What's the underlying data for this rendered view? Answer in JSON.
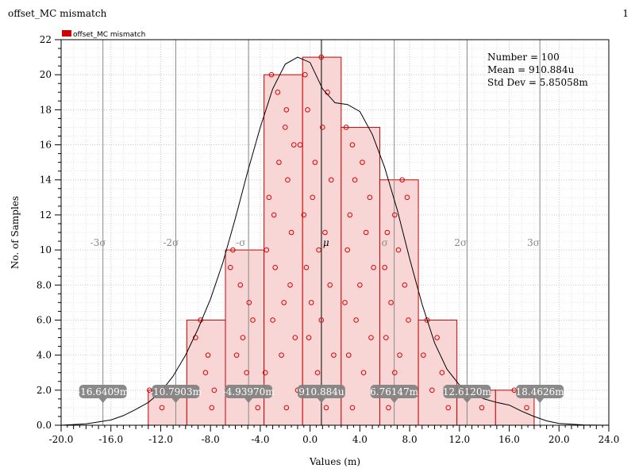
{
  "window": {
    "title": "offset_MC mismatch",
    "index": "1"
  },
  "chart_data": {
    "type": "bar",
    "title": "offset_MC mismatch",
    "xlabel": "Values (m)",
    "ylabel": "No. of Samples",
    "xlim": [
      -20,
      24
    ],
    "ylim": [
      0,
      22
    ],
    "xticks": [
      "-20.0",
      "-16.0",
      "-12.0",
      "-8.0",
      "-4.0",
      "0.0",
      "4.0",
      "8.0",
      "12.0",
      "16.0",
      "20.0",
      "24.0"
    ],
    "yticks": [
      "0.0",
      "2.0",
      "4.0",
      "6.0",
      "8.0",
      "10",
      "12",
      "14",
      "16",
      "18",
      "20",
      "22"
    ],
    "grid": true,
    "legend": {
      "position": "top-left",
      "entries": [
        {
          "name": "offset_MC mismatch",
          "color": "#cc0000"
        }
      ]
    },
    "bins": [
      {
        "from": -13.0,
        "to": -9.9,
        "count": 2
      },
      {
        "from": -9.9,
        "to": -6.8,
        "count": 6
      },
      {
        "from": -6.8,
        "to": -3.7,
        "count": 10
      },
      {
        "from": -3.7,
        "to": -0.6,
        "count": 20
      },
      {
        "from": -0.6,
        "to": 2.5,
        "count": 21
      },
      {
        "from": 2.5,
        "to": 5.6,
        "count": 17
      },
      {
        "from": 5.6,
        "to": 8.7,
        "count": 14
      },
      {
        "from": 8.7,
        "to": 11.8,
        "count": 6
      },
      {
        "from": 11.8,
        "to": 14.9,
        "count": 2
      },
      {
        "from": 14.9,
        "to": 18.0,
        "count": 2
      }
    ],
    "density_curve": {
      "x": [
        -20,
        -18,
        -16,
        -15,
        -14,
        -13,
        -12,
        -11,
        -10,
        -9,
        -8,
        -7,
        -6,
        -5,
        -4,
        -3,
        -2,
        -1,
        0,
        1,
        2,
        3,
        4,
        5,
        6,
        7,
        8,
        9,
        10,
        11,
        12,
        13,
        14,
        15,
        16,
        17,
        18,
        19,
        20,
        22,
        24
      ],
      "y": [
        0.0,
        0.08,
        0.3,
        0.55,
        0.9,
        1.3,
        1.9,
        2.8,
        4.0,
        5.5,
        7.2,
        9.3,
        11.8,
        14.5,
        17.0,
        19.2,
        20.6,
        21.0,
        20.7,
        19.2,
        18.4,
        18.3,
        17.9,
        16.6,
        14.7,
        12.3,
        9.5,
        6.9,
        4.7,
        3.2,
        2.3,
        1.8,
        1.5,
        1.3,
        1.15,
        0.8,
        0.5,
        0.25,
        0.1,
        0.02,
        0.0
      ]
    },
    "samples": [
      {
        "x": -12.9,
        "y": 2.0
      },
      {
        "x": -11.9,
        "y": 1.0
      },
      {
        "x": -9.2,
        "y": 5.0
      },
      {
        "x": -8.8,
        "y": 6.0
      },
      {
        "x": -8.2,
        "y": 4.0
      },
      {
        "x": -8.4,
        "y": 3.0
      },
      {
        "x": -7.7,
        "y": 2.0
      },
      {
        "x": -7.9,
        "y": 1.0
      },
      {
        "x": -6.2,
        "y": 10.0
      },
      {
        "x": -6.4,
        "y": 9.0
      },
      {
        "x": -5.6,
        "y": 8.0
      },
      {
        "x": -4.9,
        "y": 7.0
      },
      {
        "x": -4.6,
        "y": 6.0
      },
      {
        "x": -5.4,
        "y": 5.0
      },
      {
        "x": -5.9,
        "y": 4.0
      },
      {
        "x": -5.1,
        "y": 3.0
      },
      {
        "x": -6.6,
        "y": 2.0
      },
      {
        "x": -4.2,
        "y": 1.0
      },
      {
        "x": -3.1,
        "y": 20.0
      },
      {
        "x": -2.6,
        "y": 19.0
      },
      {
        "x": -1.9,
        "y": 18.0
      },
      {
        "x": -2.0,
        "y": 17.0
      },
      {
        "x": -1.3,
        "y": 16.0
      },
      {
        "x": -2.5,
        "y": 15.0
      },
      {
        "x": -1.8,
        "y": 14.0
      },
      {
        "x": -3.3,
        "y": 13.0
      },
      {
        "x": -2.9,
        "y": 12.0
      },
      {
        "x": -1.5,
        "y": 11.0
      },
      {
        "x": -3.5,
        "y": 10.0
      },
      {
        "x": -2.8,
        "y": 9.0
      },
      {
        "x": -1.6,
        "y": 8.0
      },
      {
        "x": -2.1,
        "y": 7.0
      },
      {
        "x": -3.0,
        "y": 6.0
      },
      {
        "x": -1.2,
        "y": 5.0
      },
      {
        "x": -2.3,
        "y": 4.0
      },
      {
        "x": -3.6,
        "y": 3.0
      },
      {
        "x": -1.0,
        "y": 2.0
      },
      {
        "x": -1.9,
        "y": 1.0
      },
      {
        "x": 0.9,
        "y": 21.0
      },
      {
        "x": -0.4,
        "y": 20.0
      },
      {
        "x": 1.4,
        "y": 19.0
      },
      {
        "x": -0.2,
        "y": 18.0
      },
      {
        "x": 1.0,
        "y": 17.0
      },
      {
        "x": -0.8,
        "y": 16.0
      },
      {
        "x": 0.4,
        "y": 15.0
      },
      {
        "x": 1.7,
        "y": 14.0
      },
      {
        "x": 0.2,
        "y": 13.0
      },
      {
        "x": -0.5,
        "y": 12.0
      },
      {
        "x": 1.2,
        "y": 11.0
      },
      {
        "x": 0.7,
        "y": 10.0
      },
      {
        "x": -0.3,
        "y": 9.0
      },
      {
        "x": 1.6,
        "y": 8.0
      },
      {
        "x": 0.1,
        "y": 7.0
      },
      {
        "x": 0.9,
        "y": 6.0
      },
      {
        "x": -0.1,
        "y": 5.0
      },
      {
        "x": 1.9,
        "y": 4.0
      },
      {
        "x": 0.6,
        "y": 3.0
      },
      {
        "x": -0.4,
        "y": 2.0
      },
      {
        "x": 1.3,
        "y": 1.0
      },
      {
        "x": 2.9,
        "y": 17.0
      },
      {
        "x": 3.4,
        "y": 16.0
      },
      {
        "x": 4.2,
        "y": 15.0
      },
      {
        "x": 3.6,
        "y": 14.0
      },
      {
        "x": 4.8,
        "y": 13.0
      },
      {
        "x": 3.2,
        "y": 12.0
      },
      {
        "x": 4.5,
        "y": 11.0
      },
      {
        "x": 3.0,
        "y": 10.0
      },
      {
        "x": 5.1,
        "y": 9.0
      },
      {
        "x": 4.0,
        "y": 8.0
      },
      {
        "x": 2.8,
        "y": 7.0
      },
      {
        "x": 3.7,
        "y": 6.0
      },
      {
        "x": 4.9,
        "y": 5.0
      },
      {
        "x": 3.1,
        "y": 4.0
      },
      {
        "x": 4.3,
        "y": 3.0
      },
      {
        "x": 5.2,
        "y": 2.0
      },
      {
        "x": 3.4,
        "y": 1.0
      },
      {
        "x": 7.4,
        "y": 14.0
      },
      {
        "x": 7.8,
        "y": 13.0
      },
      {
        "x": 6.8,
        "y": 12.0
      },
      {
        "x": 6.2,
        "y": 11.0
      },
      {
        "x": 7.1,
        "y": 10.0
      },
      {
        "x": 6.0,
        "y": 9.0
      },
      {
        "x": 7.6,
        "y": 8.0
      },
      {
        "x": 6.5,
        "y": 7.0
      },
      {
        "x": 7.9,
        "y": 6.0
      },
      {
        "x": 6.1,
        "y": 5.0
      },
      {
        "x": 7.2,
        "y": 4.0
      },
      {
        "x": 6.8,
        "y": 3.0
      },
      {
        "x": 7.5,
        "y": 2.0
      },
      {
        "x": 6.3,
        "y": 1.0
      },
      {
        "x": 9.4,
        "y": 6.0
      },
      {
        "x": 10.2,
        "y": 5.0
      },
      {
        "x": 9.1,
        "y": 4.0
      },
      {
        "x": 10.6,
        "y": 3.0
      },
      {
        "x": 9.8,
        "y": 2.0
      },
      {
        "x": 11.1,
        "y": 1.0
      },
      {
        "x": 12.4,
        "y": 2.0
      },
      {
        "x": 13.8,
        "y": 1.0
      },
      {
        "x": 16.4,
        "y": 2.0
      },
      {
        "x": 17.4,
        "y": 1.0
      }
    ],
    "stats": {
      "number": "Number = 100",
      "mean": "Mean = 910.884u",
      "std_dev": "Std Dev = 5.85058m"
    },
    "sigma_lines": [
      {
        "label": "-3σ",
        "x": -16.6409
      },
      {
        "label": "-2σ",
        "x": -10.7903
      },
      {
        "label": "-σ",
        "x": -4.9397
      },
      {
        "label": "μ",
        "x": 0.910884
      },
      {
        "label": "σ",
        "x": 6.76147
      },
      {
        "label": "2σ",
        "x": 12.612
      },
      {
        "label": "3σ",
        "x": 18.4626
      }
    ],
    "markers": [
      {
        "label": "-16.6409m",
        "x": -16.6409
      },
      {
        "label": "-10.7903m",
        "x": -10.7903
      },
      {
        "label": "-4.93970m",
        "x": -4.9397
      },
      {
        "label": "910.884u",
        "x": 0.910884
      },
      {
        "label": "6.76147m",
        "x": 6.76147
      },
      {
        "label": "12.6120m",
        "x": 12.612
      },
      {
        "label": "18.4626m",
        "x": 18.4626
      }
    ],
    "colors": {
      "bar_fill": "#f9d6d6",
      "bar_stroke": "#cc0000",
      "sample_stroke": "#dd0000",
      "curve": "#000000",
      "sigma_line": "#888888",
      "marker_bg": "#808080"
    }
  }
}
